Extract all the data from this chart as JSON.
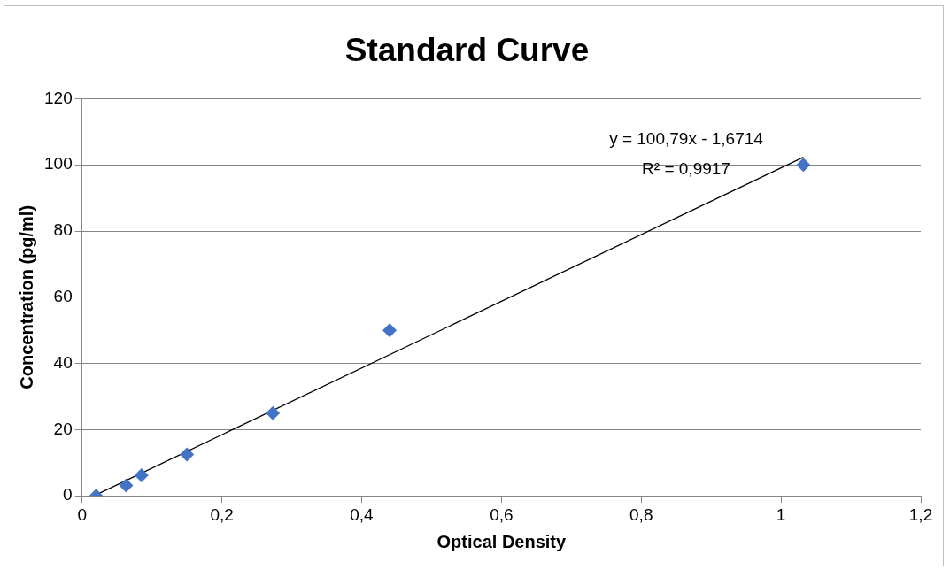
{
  "chart_data": {
    "type": "scatter",
    "title": "Standard Curve",
    "xlabel": "Optical Density",
    "ylabel": "Concentration (pg/ml)",
    "series": [
      {
        "x": [
          0.02,
          0.063,
          0.085,
          0.15,
          0.273,
          0.44,
          1.032
        ],
        "values": [
          0,
          3.1,
          6.2,
          12.5,
          25,
          50,
          100
        ],
        "color": "#4472c4",
        "marker": "diamond"
      },
      {
        "type": "line",
        "x": [
          0.02,
          1.032
        ],
        "values": [
          0.3,
          102.3
        ],
        "color": "#000000",
        "marker": "none"
      }
    ],
    "xlim": [
      0,
      1.2
    ],
    "xticks": [
      0,
      {
        "value": 0.2,
        "label": "0,2"
      },
      {
        "value": 0.4,
        "label": "0,4"
      },
      {
        "value": 0.6,
        "label": "0,6"
      },
      {
        "value": 0.8,
        "label": "0,8"
      },
      1,
      {
        "value": 1.2,
        "label": "1,2"
      }
    ],
    "ylim": [
      0,
      120
    ],
    "yticks": [
      0,
      20,
      40,
      60,
      80,
      100,
      120
    ],
    "grid": "y",
    "legend": false,
    "annotations": [
      "y = 100,79x - 1,6714",
      "R² = 0,9917"
    ]
  }
}
